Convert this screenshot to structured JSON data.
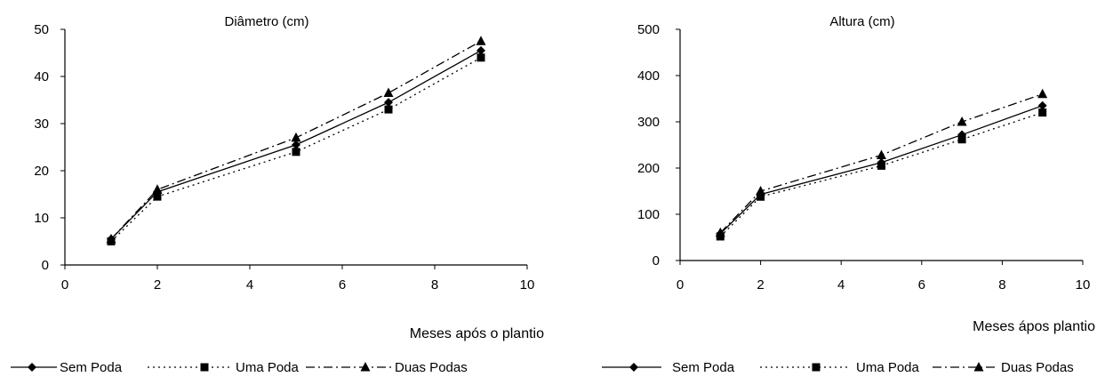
{
  "chart_data": [
    {
      "type": "line",
      "title": "Diâmetro (cm)",
      "xlabel": "Meses após o plantio",
      "ylabel": "",
      "xlim": [
        0,
        10
      ],
      "ylim": [
        0,
        50
      ],
      "xticks": [
        0,
        2,
        4,
        6,
        8,
        10
      ],
      "yticks": [
        0,
        10,
        20,
        30,
        40,
        50
      ],
      "grid": false,
      "legend_placement": "bottom",
      "x": [
        1,
        2,
        5,
        7,
        9
      ],
      "series": [
        {
          "name": "Sem Poda",
          "marker": "diamond",
          "dash": "solid",
          "values": [
            5.5,
            15.5,
            25.5,
            34.5,
            45.5
          ]
        },
        {
          "name": "Uma Poda",
          "marker": "square",
          "dash": "dotted",
          "values": [
            5,
            14.5,
            24,
            33,
            44
          ]
        },
        {
          "name": "Duas Podas",
          "marker": "triangle",
          "dash": "dashdot",
          "values": [
            5.5,
            16,
            27,
            36.5,
            47.5
          ]
        }
      ]
    },
    {
      "type": "line",
      "title": "Altura (cm)",
      "xlabel": "Meses ápos plantio",
      "ylabel": "",
      "xlim": [
        0,
        10
      ],
      "ylim": [
        0,
        500
      ],
      "xticks": [
        0,
        2,
        4,
        6,
        8,
        10
      ],
      "yticks": [
        0,
        100,
        200,
        300,
        400,
        500
      ],
      "grid": false,
      "legend_placement": "bottom",
      "x": [
        1,
        2,
        5,
        7,
        9
      ],
      "series": [
        {
          "name": "Sem Poda",
          "marker": "diamond",
          "dash": "solid",
          "values": [
            58,
            143,
            212,
            272,
            335
          ]
        },
        {
          "name": "Uma Poda",
          "marker": "square",
          "dash": "dotted",
          "values": [
            52,
            138,
            205,
            262,
            320
          ]
        },
        {
          "name": "Duas Podas",
          "marker": "triangle",
          "dash": "dashdot",
          "values": [
            60,
            150,
            228,
            300,
            360
          ]
        }
      ]
    }
  ]
}
